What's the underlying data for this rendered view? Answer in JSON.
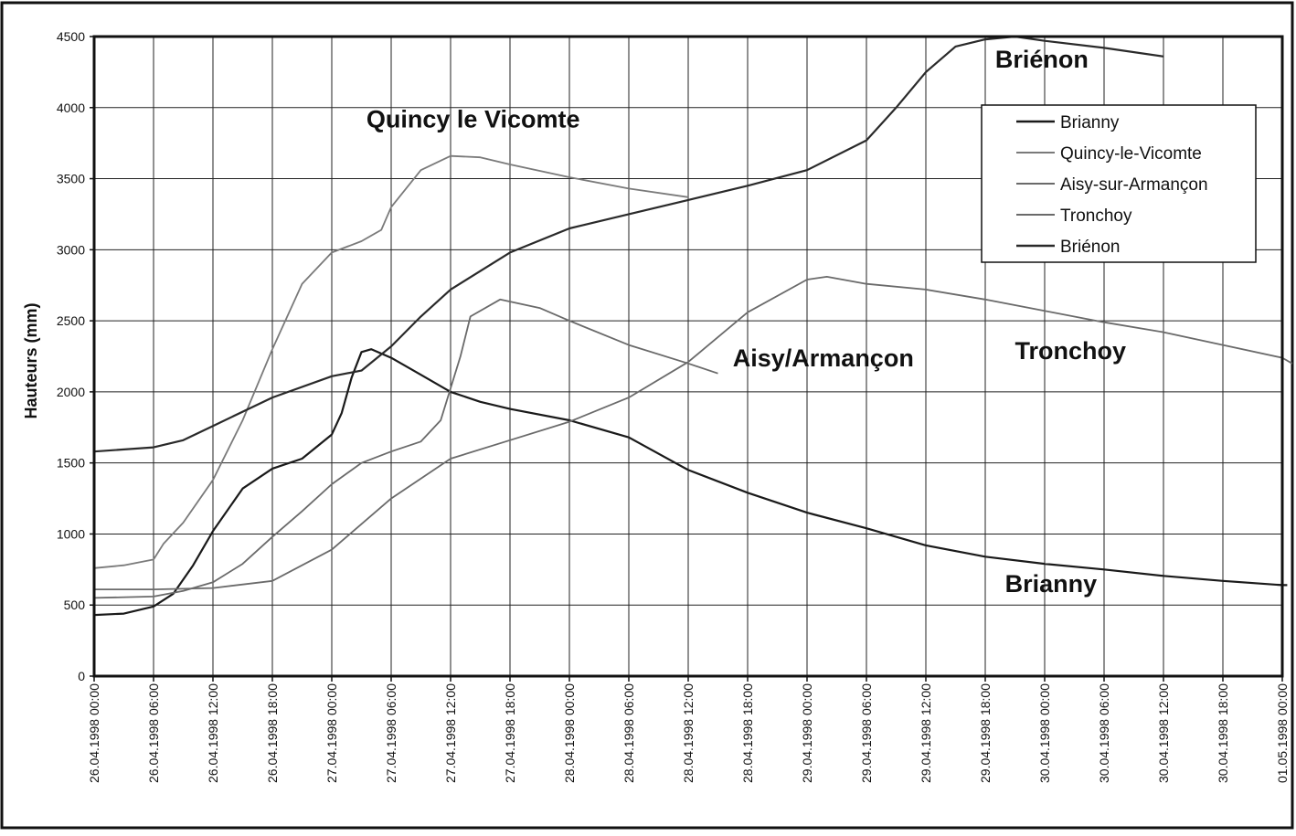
{
  "chart_data": {
    "type": "line",
    "xlabel": "",
    "ylabel": "Hauteurs (mm)",
    "ylim": [
      0,
      4500
    ],
    "yticks": [
      0,
      500,
      1000,
      1500,
      2000,
      2500,
      3000,
      3500,
      4000,
      4500
    ],
    "xlim": [
      "26.04.1998 00:00",
      "01.05.1998 00:00"
    ],
    "xticks": [
      "26.04.1998 00:00",
      "26.04.1998 06:00",
      "26.04.1998 12:00",
      "26.04.1998 18:00",
      "27.04.1998 00:00",
      "27.04.1998 06:00",
      "27.04.1998 12:00",
      "27.04.1998 18:00",
      "28.04.1998 00:00",
      "28.04.1998 06:00",
      "28.04.1998 12:00",
      "28.04.1998 18:00",
      "29.04.1998 00:00",
      "29.04.1998 06:00",
      "29.04.1998 12:00",
      "29.04.1998 18:00",
      "30.04.1998 00:00",
      "30.04.1998 06:00",
      "30.04.1998 12:00",
      "30.04.1998 18:00",
      "01.05.1998 00:00"
    ],
    "grid": true,
    "legend_position": "top-right",
    "series": [
      {
        "name": "Brianny",
        "color": "#1a1a1a",
        "points": [
          [
            "26.04.1998 00:00",
            430
          ],
          [
            "26.04.1998 03:00",
            440
          ],
          [
            "26.04.1998 06:00",
            490
          ],
          [
            "26.04.1998 08:00",
            580
          ],
          [
            "26.04.1998 10:00",
            780
          ],
          [
            "26.04.1998 12:00",
            1020
          ],
          [
            "26.04.1998 15:00",
            1320
          ],
          [
            "26.04.1998 18:00",
            1460
          ],
          [
            "26.04.1998 21:00",
            1530
          ],
          [
            "27.04.1998 00:00",
            1700
          ],
          [
            "27.04.1998 01:00",
            1850
          ],
          [
            "27.04.1998 02:00",
            2100
          ],
          [
            "27.04.1998 03:00",
            2280
          ],
          [
            "27.04.1998 04:00",
            2300
          ],
          [
            "27.04.1998 06:00",
            2240
          ],
          [
            "27.04.1998 09:00",
            2120
          ],
          [
            "27.04.1998 12:00",
            2000
          ],
          [
            "27.04.1998 15:00",
            1930
          ],
          [
            "27.04.1998 18:00",
            1880
          ],
          [
            "28.04.1998 00:00",
            1800
          ],
          [
            "28.04.1998 06:00",
            1680
          ],
          [
            "28.04.1998 12:00",
            1450
          ],
          [
            "28.04.1998 18:00",
            1290
          ],
          [
            "29.04.1998 00:00",
            1150
          ],
          [
            "29.04.1998 06:00",
            1040
          ],
          [
            "29.04.1998 12:00",
            920
          ],
          [
            "29.04.1998 18:00",
            840
          ],
          [
            "30.04.1998 00:00",
            790
          ],
          [
            "30.04.1998 06:00",
            750
          ],
          [
            "30.04.1998 12:00",
            705
          ],
          [
            "30.04.1998 18:00",
            670
          ],
          [
            "01.05.1998 00:00",
            640
          ],
          [
            "01.05.1998 00:30",
            640
          ]
        ]
      },
      {
        "name": "Quincy-le-Vicomte",
        "color": "#7a7a7a",
        "points": [
          [
            "26.04.1998 00:00",
            760
          ],
          [
            "26.04.1998 03:00",
            780
          ],
          [
            "26.04.1998 06:00",
            820
          ],
          [
            "26.04.1998 07:00",
            930
          ],
          [
            "26.04.1998 09:00",
            1080
          ],
          [
            "26.04.1998 12:00",
            1380
          ],
          [
            "26.04.1998 15:00",
            1800
          ],
          [
            "26.04.1998 18:00",
            2300
          ],
          [
            "26.04.1998 21:00",
            2760
          ],
          [
            "27.04.1998 00:00",
            2980
          ],
          [
            "27.04.1998 03:00",
            3060
          ],
          [
            "27.04.1998 05:00",
            3140
          ],
          [
            "27.04.1998 06:00",
            3300
          ],
          [
            "27.04.1998 09:00",
            3560
          ],
          [
            "27.04.1998 12:00",
            3660
          ],
          [
            "27.04.1998 15:00",
            3650
          ],
          [
            "27.04.1998 18:00",
            3600
          ],
          [
            "28.04.1998 00:00",
            3510
          ],
          [
            "28.04.1998 06:00",
            3430
          ],
          [
            "28.04.1998 12:00",
            3370
          ]
        ]
      },
      {
        "name": "Aisy-sur-Armançon",
        "color": "#6a6a6a",
        "points": [
          [
            "26.04.1998 00:00",
            550
          ],
          [
            "26.04.1998 06:00",
            560
          ],
          [
            "26.04.1998 09:00",
            600
          ],
          [
            "26.04.1998 12:00",
            660
          ],
          [
            "26.04.1998 15:00",
            790
          ],
          [
            "26.04.1998 18:00",
            980
          ],
          [
            "26.04.1998 21:00",
            1160
          ],
          [
            "27.04.1998 00:00",
            1350
          ],
          [
            "27.04.1998 03:00",
            1500
          ],
          [
            "27.04.1998 06:00",
            1580
          ],
          [
            "27.04.1998 09:00",
            1650
          ],
          [
            "27.04.1998 11:00",
            1800
          ],
          [
            "27.04.1998 13:00",
            2250
          ],
          [
            "27.04.1998 14:00",
            2530
          ],
          [
            "27.04.1998 17:00",
            2650
          ],
          [
            "27.04.1998 21:00",
            2590
          ],
          [
            "28.04.1998 00:00",
            2500
          ],
          [
            "28.04.1998 06:00",
            2330
          ],
          [
            "28.04.1998 12:00",
            2200
          ],
          [
            "28.04.1998 15:00",
            2130
          ]
        ]
      },
      {
        "name": "Tronchoy",
        "color": "#6a6a6a",
        "points": [
          [
            "26.04.1998 00:00",
            610
          ],
          [
            "26.04.1998 06:00",
            610
          ],
          [
            "26.04.1998 12:00",
            620
          ],
          [
            "26.04.1998 18:00",
            670
          ],
          [
            "27.04.1998 00:00",
            890
          ],
          [
            "27.04.1998 06:00",
            1250
          ],
          [
            "27.04.1998 12:00",
            1530
          ],
          [
            "27.04.1998 18:00",
            1660
          ],
          [
            "28.04.1998 00:00",
            1790
          ],
          [
            "28.04.1998 06:00",
            1960
          ],
          [
            "28.04.1998 12:00",
            2210
          ],
          [
            "28.04.1998 18:00",
            2560
          ],
          [
            "29.04.1998 00:00",
            2790
          ],
          [
            "29.04.1998 02:00",
            2810
          ],
          [
            "29.04.1998 06:00",
            2760
          ],
          [
            "29.04.1998 12:00",
            2720
          ],
          [
            "29.04.1998 18:00",
            2650
          ],
          [
            "30.04.1998 00:00",
            2570
          ],
          [
            "30.04.1998 06:00",
            2490
          ],
          [
            "30.04.1998 12:00",
            2420
          ],
          [
            "30.04.1998 18:00",
            2330
          ],
          [
            "01.05.1998 00:00",
            2240
          ],
          [
            "01.05.1998 01:00",
            2200
          ]
        ]
      },
      {
        "name": "Briénon",
        "color": "#2a2a2a",
        "points": [
          [
            "26.04.1998 00:00",
            1580
          ],
          [
            "26.04.1998 06:00",
            1610
          ],
          [
            "26.04.1998 09:00",
            1660
          ],
          [
            "26.04.1998 12:00",
            1760
          ],
          [
            "26.04.1998 18:00",
            1960
          ],
          [
            "27.04.1998 00:00",
            2110
          ],
          [
            "27.04.1998 03:00",
            2150
          ],
          [
            "27.04.1998 06:00",
            2320
          ],
          [
            "27.04.1998 09:00",
            2530
          ],
          [
            "27.04.1998 12:00",
            2720
          ],
          [
            "27.04.1998 18:00",
            2980
          ],
          [
            "28.04.1998 00:00",
            3150
          ],
          [
            "28.04.1998 06:00",
            3250
          ],
          [
            "28.04.1998 12:00",
            3350
          ],
          [
            "28.04.1998 18:00",
            3450
          ],
          [
            "29.04.1998 00:00",
            3560
          ],
          [
            "29.04.1998 06:00",
            3770
          ],
          [
            "29.04.1998 09:00",
            4000
          ],
          [
            "29.04.1998 12:00",
            4250
          ],
          [
            "29.04.1998 15:00",
            4430
          ],
          [
            "29.04.1998 18:00",
            4480
          ],
          [
            "29.04.1998 21:00",
            4500
          ],
          [
            "30.04.1998 00:00",
            4470
          ],
          [
            "30.04.1998 06:00",
            4420
          ],
          [
            "30.04.1998 12:00",
            4360
          ]
        ]
      }
    ],
    "annotations": [
      {
        "text": "Briénon",
        "at": [
          "29.04.1998 19:00",
          4280
        ]
      },
      {
        "text": "Quincy le Vicomte",
        "at": [
          "27.04.1998 03:30",
          3860
        ]
      },
      {
        "text": "Tronchoy",
        "at": [
          "29.04.1998 21:00",
          2230
        ]
      },
      {
        "text": "Aisy/Armançon",
        "at": [
          "28.04.1998 16:30",
          2180
        ]
      },
      {
        "text": "Brianny",
        "at": [
          "29.04.1998 20:00",
          590
        ]
      }
    ]
  }
}
